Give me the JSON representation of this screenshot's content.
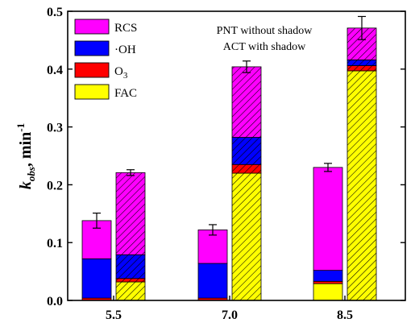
{
  "chart_data": {
    "type": "bar",
    "stacked": true,
    "ylabel": {
      "main": "k",
      "sub": "obs",
      "rest": ", min",
      "sup": "-1"
    },
    "ylim": [
      0,
      0.5
    ],
    "yticks": [
      "0.0",
      "0.1",
      "0.2",
      "0.3",
      "0.4",
      "0.5"
    ],
    "categories": [
      "5.5",
      "7.0",
      "8.5"
    ],
    "annotations": [
      "PNT without shadow",
      "ACT with shadow"
    ],
    "legend_position": "top-left",
    "series": [
      {
        "name": "FAC",
        "label_main": "FAC",
        "label_sub": "",
        "color": "#ffff00"
      },
      {
        "name": "O3",
        "label_main": "O",
        "label_sub": "3",
        "color": "#ff0000"
      },
      {
        "name": "·OH",
        "label_main": "·OH",
        "label_sub": "",
        "color": "#0000ff"
      },
      {
        "name": "RCS",
        "label_main": "RCS",
        "label_sub": "",
        "color": "#ff00ff"
      }
    ],
    "legend_order": [
      3,
      2,
      1,
      0
    ],
    "groups": [
      {
        "PNT": {
          "FAC": 0.0,
          "O3": 0.004,
          "OH": 0.068,
          "RCS": 0.066,
          "total": 0.138,
          "err": 0.013
        },
        "ACT": {
          "FAC": 0.032,
          "O3": 0.006,
          "OH": 0.041,
          "RCS": 0.142,
          "total": 0.221,
          "err": 0.005
        }
      },
      {
        "PNT": {
          "FAC": 0.0,
          "O3": 0.004,
          "OH": 0.06,
          "RCS": 0.058,
          "total": 0.122,
          "err": 0.009
        },
        "ACT": {
          "FAC": 0.22,
          "O3": 0.015,
          "OH": 0.047,
          "RCS": 0.122,
          "total": 0.404,
          "err": 0.01
        }
      },
      {
        "PNT": {
          "FAC": 0.029,
          "O3": 0.004,
          "OH": 0.019,
          "RCS": 0.178,
          "total": 0.23,
          "err": 0.007
        },
        "ACT": {
          "FAC": 0.397,
          "O3": 0.009,
          "OH": 0.01,
          "RCS": 0.055,
          "total": 0.471,
          "err": 0.02
        }
      }
    ]
  }
}
